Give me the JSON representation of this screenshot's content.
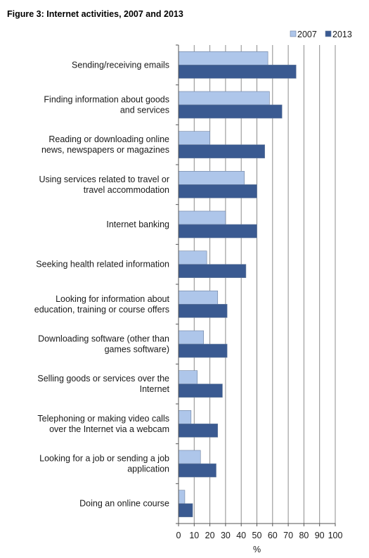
{
  "chart_data": {
    "type": "bar",
    "orientation": "horizontal",
    "title": "Figure 3: Internet activities, 2007 and 2013",
    "xlabel": "%",
    "ylabel": "",
    "xlim": [
      0,
      100
    ],
    "x_ticks": [
      "0",
      "10",
      "20",
      "30",
      "40",
      "50",
      "60",
      "70",
      "80",
      "90",
      "100"
    ],
    "grid": "vertical",
    "legend_position": "top-right",
    "categories": [
      [
        "Sending/receiving emails"
      ],
      [
        "Finding information about goods",
        "and services"
      ],
      [
        "Reading or downloading online",
        "news, newspapers or magazines"
      ],
      [
        "Using services related to travel or",
        "travel accommodation"
      ],
      [
        "Internet banking"
      ],
      [
        "Seeking health related information"
      ],
      [
        "Looking for information about",
        "education, training or course offers"
      ],
      [
        "Downloading software (other than",
        "games software)"
      ],
      [
        "Selling goods or services over the",
        "Internet"
      ],
      [
        "Telephoning or making video calls",
        "over the Internet via a webcam"
      ],
      [
        "Looking for a job or sending a job",
        "application"
      ],
      [
        "Doing an online course"
      ]
    ],
    "series": [
      {
        "name": "2007",
        "color": "#aec6ea",
        "values": [
          57,
          58,
          20,
          42,
          30,
          18,
          25,
          16,
          12,
          8,
          14,
          4
        ]
      },
      {
        "name": "2013",
        "color": "#3a5a91",
        "values": [
          75,
          66,
          55,
          50,
          50,
          43,
          31,
          31,
          28,
          25,
          24,
          9
        ]
      }
    ]
  }
}
